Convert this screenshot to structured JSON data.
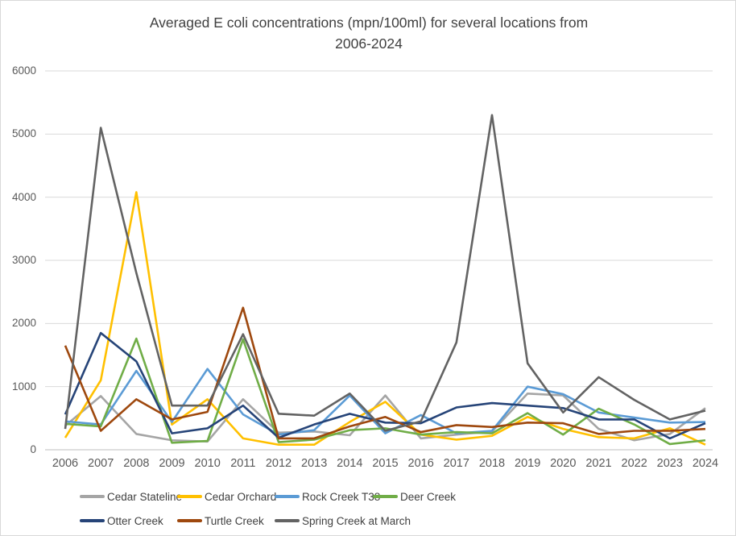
{
  "title": {
    "line1": "Averaged E coli concentrations (mpn/100ml) for several locations from",
    "line2": "2006-2024"
  },
  "chart_data": {
    "type": "line",
    "title": "Averaged E coli concentrations (mpn/100ml) for several locations from 2006-2024",
    "x": [
      2006,
      2007,
      2008,
      2009,
      2010,
      2011,
      2012,
      2013,
      2014,
      2015,
      2016,
      2017,
      2018,
      2019,
      2020,
      2021,
      2022,
      2023,
      2024
    ],
    "xlabel": "",
    "ylabel": "",
    "ylim": [
      0,
      6000
    ],
    "yticks": [
      0,
      1000,
      2000,
      3000,
      4000,
      5000,
      6000
    ],
    "grid": "horizontal",
    "legend_position": "bottom",
    "series": [
      {
        "name": "Cedar Stateline",
        "color": "#A5A5A5",
        "values": [
          380,
          850,
          250,
          150,
          130,
          800,
          270,
          290,
          230,
          860,
          180,
          240,
          290,
          890,
          860,
          330,
          150,
          250,
          660
        ]
      },
      {
        "name": "Cedar Orchard",
        "color": "#FFC000",
        "values": [
          190,
          1100,
          4080,
          400,
          800,
          180,
          80,
          80,
          440,
          760,
          240,
          160,
          220,
          520,
          330,
          200,
          180,
          340,
          80
        ]
      },
      {
        "name": "Rock Creek T38",
        "color": "#5B9BD5",
        "values": [
          450,
          400,
          1250,
          440,
          1280,
          560,
          240,
          310,
          860,
          260,
          550,
          260,
          300,
          1000,
          880,
          590,
          510,
          430,
          440
        ]
      },
      {
        "name": "Deer Creek",
        "color": "#70AD47",
        "values": [
          410,
          370,
          1760,
          110,
          140,
          1750,
          120,
          160,
          310,
          340,
          240,
          280,
          260,
          580,
          240,
          650,
          400,
          90,
          150
        ]
      },
      {
        "name": "Otter Creek",
        "color": "#264478",
        "values": [
          560,
          1850,
          1400,
          260,
          340,
          700,
          190,
          400,
          570,
          430,
          420,
          670,
          740,
          700,
          660,
          480,
          480,
          180,
          420
        ]
      },
      {
        "name": "Turtle Creek",
        "color": "#9E480E",
        "values": [
          1650,
          300,
          800,
          480,
          600,
          2250,
          180,
          180,
          370,
          520,
          280,
          390,
          360,
          430,
          420,
          250,
          300,
          300,
          330
        ]
      },
      {
        "name": "Spring Creek at March",
        "color": "#636363",
        "values": [
          330,
          5100,
          2800,
          700,
          700,
          1830,
          570,
          540,
          890,
          300,
          450,
          1700,
          5300,
          1370,
          590,
          1150,
          790,
          480,
          620
        ]
      }
    ]
  }
}
